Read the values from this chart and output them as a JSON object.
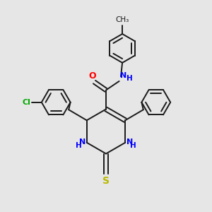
{
  "background_color": "#e6e6e6",
  "bond_color": "#1a1a1a",
  "N_color": "#0000ff",
  "O_color": "#ff0000",
  "S_color": "#b8b800",
  "Cl_color": "#00aa00",
  "figsize": [
    3.0,
    3.0
  ],
  "dpi": 100,
  "xlim": [
    0,
    10
  ],
  "ylim": [
    0,
    10
  ]
}
